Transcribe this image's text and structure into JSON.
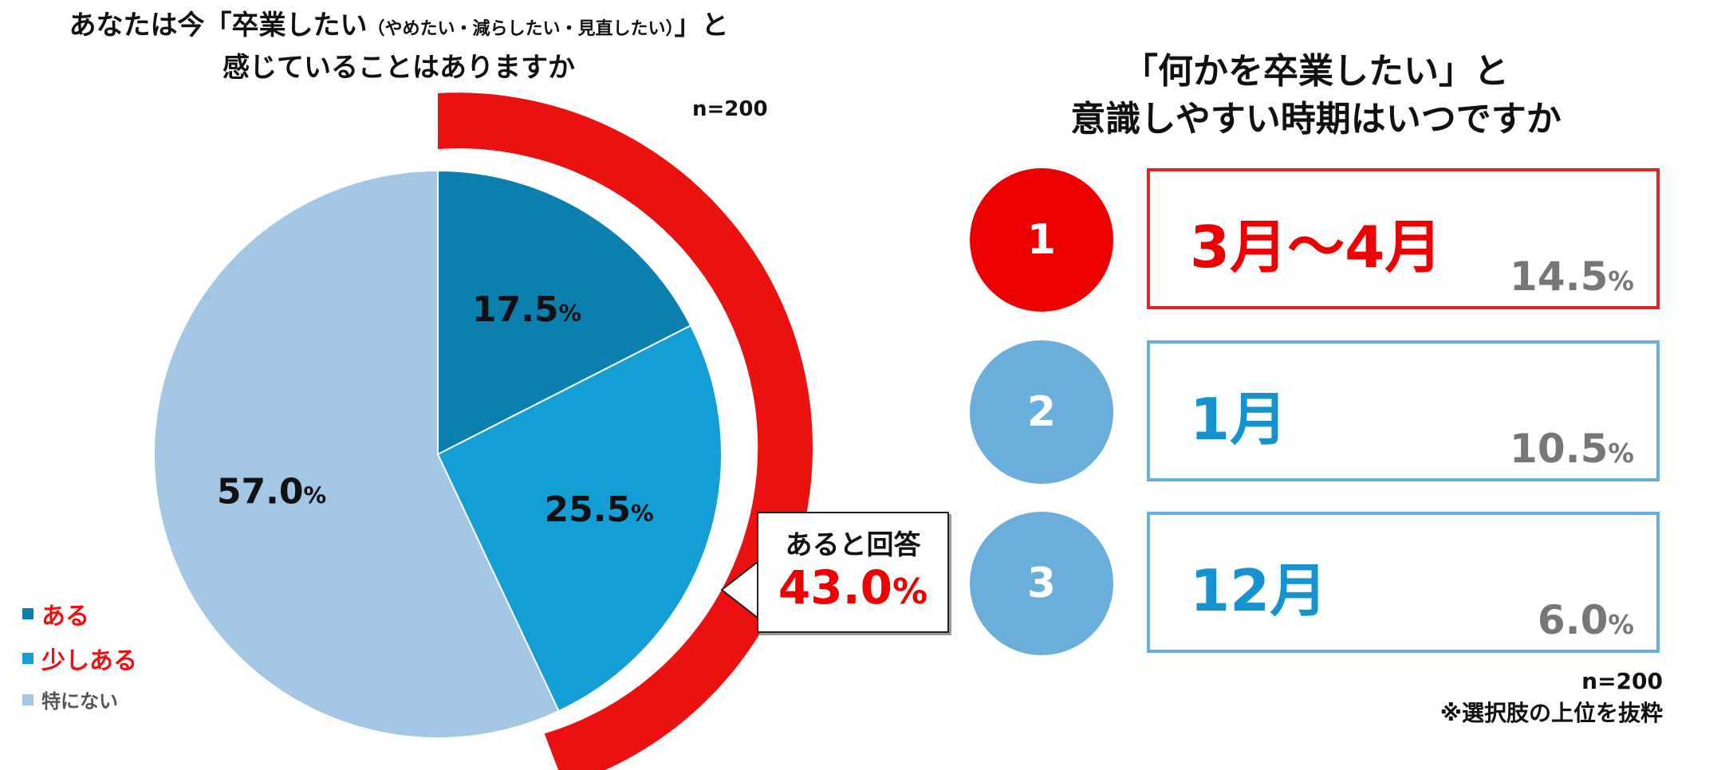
{
  "chart_data": [
    {
      "type": "pie",
      "title": "あなたは今「卒業したい（やめたい・減らしたい・見直したい）」と感じていることはありますか",
      "title_main": "あなたは今「卒業したい",
      "title_sub": "（やめたい・減らしたい・見直したい）",
      "title_end": "」と",
      "title_line2": "感じていることはありますか",
      "n_label": "n=200",
      "legend_position": "bottom-left",
      "slices": [
        {
          "name": "ある",
          "value": 17.5,
          "label": "17.5",
          "color": "#0b7fad",
          "legend_color": "#ee1111"
        },
        {
          "name": "少しある",
          "value": 25.5,
          "label": "25.5",
          "color": "#139fd6",
          "legend_color": "#ee1111"
        },
        {
          "name": "特にない",
          "value": 57.0,
          "label": "57.0",
          "color": "#a3c6e5",
          "legend_color": "#555555"
        }
      ],
      "unit": "%",
      "highlight": {
        "label": "あると回答",
        "value": "43.0",
        "unit": "%",
        "color": "#ec1111"
      }
    },
    {
      "type": "table",
      "title_line1": "「何かを卒業したい」と",
      "title_line2": "意識しやすい時期はいつですか",
      "rows": [
        {
          "rank": "1",
          "label": "3月〜4月",
          "value": "14.5",
          "rank_color": "#ee0000",
          "label_color": "#ee0000",
          "border_color": "#e0252a"
        },
        {
          "rank": "2",
          "label": "1月",
          "value": "10.5",
          "rank_color": "#6aaedb",
          "label_color": "#1493cf",
          "border_color": "#6aaedb"
        },
        {
          "rank": "3",
          "label": "12月",
          "value": "6.0",
          "rank_color": "#6aaedb",
          "label_color": "#1493cf",
          "border_color": "#6aaedb"
        }
      ],
      "unit": "%",
      "n_label": "n=200",
      "note": "※選択肢の上位を抜粋"
    }
  ]
}
